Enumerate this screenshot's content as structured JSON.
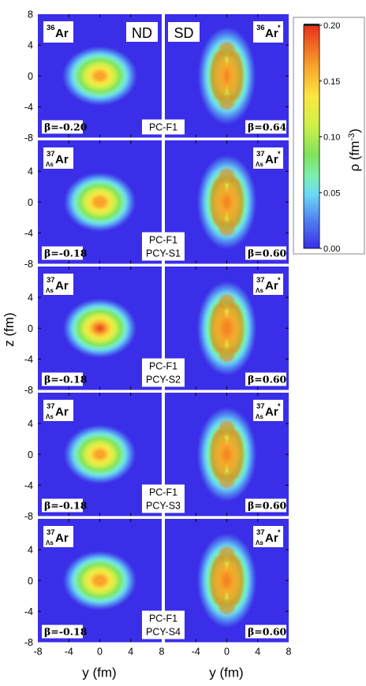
{
  "chart_data": {
    "type": "heatmap",
    "x_label": "y (fm)",
    "y_label": "z (fm)",
    "x_ticks": [
      "-8",
      "-4",
      "0",
      "4",
      "8"
    ],
    "right_x_ticks": [
      "-8",
      "-4",
      "0",
      "4",
      "8"
    ],
    "y_ticks": [
      "8",
      "4",
      "0",
      "-4",
      "-8"
    ],
    "xlim": [
      -8,
      8
    ],
    "ylim": [
      -8,
      8
    ],
    "column_labels": [
      "ND",
      "SD"
    ],
    "colorbar": {
      "label": "ρ (fm",
      "label_exp": "-3",
      "label_close": ")",
      "ticks": [
        "0.20",
        "0.15",
        "0.10",
        "0.05",
        "0.00"
      ],
      "tick_values": [
        0.2,
        0.15,
        0.1,
        0.05,
        0.0
      ],
      "range": [
        0.0,
        0.2
      ],
      "colors": [
        "#3a2ee8",
        "#4f7cf0",
        "#6ad8f6",
        "#7cf0b4",
        "#7fe25a",
        "#cff04a",
        "#fbe742",
        "#f7a22c",
        "#e8301a"
      ]
    },
    "rows": [
      {
        "nd_nucleus": {
          "mass": "36",
          "sub": "",
          "symbol": "Ar",
          "star": ""
        },
        "sd_nucleus": {
          "mass": "36",
          "sub": "",
          "symbol": "Ar",
          "star": "*"
        },
        "beta_nd": "β=-0.20",
        "beta_sd": "β=0.64",
        "force_lines": [
          "PC-F1"
        ],
        "nd_shape": {
          "half_width_y": 4.8,
          "half_height_z": 3.8,
          "peak_density": 0.185
        },
        "sd_shape": {
          "half_width_y": 3.7,
          "half_height_z": 6.3,
          "peak_density": 0.17
        }
      },
      {
        "nd_nucleus": {
          "mass": "37",
          "sub": "Λs",
          "symbol": "Ar",
          "star": ""
        },
        "sd_nucleus": {
          "mass": "37",
          "sub": "Λs",
          "symbol": "Ar",
          "star": "*"
        },
        "beta_nd": "β=-0.18",
        "beta_sd": "β=0.60",
        "force_lines": [
          "PC-F1",
          "PCY-S1"
        ],
        "nd_shape": {
          "half_width_y": 4.6,
          "half_height_z": 3.8,
          "peak_density": 0.19
        },
        "sd_shape": {
          "half_width_y": 3.8,
          "half_height_z": 6.1,
          "peak_density": 0.175
        }
      },
      {
        "nd_nucleus": {
          "mass": "37",
          "sub": "Λs",
          "symbol": "Ar",
          "star": ""
        },
        "sd_nucleus": {
          "mass": "37",
          "sub": "Λs",
          "symbol": "Ar",
          "star": "*"
        },
        "beta_nd": "β=-0.18",
        "beta_sd": "β=0.60",
        "force_lines": [
          "PC-F1",
          "PCY-S2"
        ],
        "nd_shape": {
          "half_width_y": 4.7,
          "half_height_z": 3.8,
          "peak_density": 0.2
        },
        "sd_shape": {
          "half_width_y": 3.8,
          "half_height_z": 6.1,
          "peak_density": 0.185
        }
      },
      {
        "nd_nucleus": {
          "mass": "37",
          "sub": "Λs",
          "symbol": "Ar",
          "star": ""
        },
        "sd_nucleus": {
          "mass": "37",
          "sub": "Λs",
          "symbol": "Ar",
          "star": "*"
        },
        "beta_nd": "β=-0.18",
        "beta_sd": "β=0.60",
        "force_lines": [
          "PC-F1",
          "PCY-S3"
        ],
        "nd_shape": {
          "half_width_y": 4.6,
          "half_height_z": 3.8,
          "peak_density": 0.185
        },
        "sd_shape": {
          "half_width_y": 3.8,
          "half_height_z": 6.1,
          "peak_density": 0.175
        }
      },
      {
        "nd_nucleus": {
          "mass": "37",
          "sub": "Λs",
          "symbol": "Ar",
          "star": ""
        },
        "sd_nucleus": {
          "mass": "37",
          "sub": "Λs",
          "symbol": "Ar",
          "star": "*"
        },
        "beta_nd": "β=-0.18",
        "beta_sd": "β=0.60",
        "force_lines": [
          "PC-F1",
          "PCY-S4"
        ],
        "nd_shape": {
          "half_width_y": 4.7,
          "half_height_z": 3.8,
          "peak_density": 0.19
        },
        "sd_shape": {
          "half_width_y": 3.8,
          "half_height_z": 6.1,
          "peak_density": 0.18
        }
      }
    ]
  }
}
